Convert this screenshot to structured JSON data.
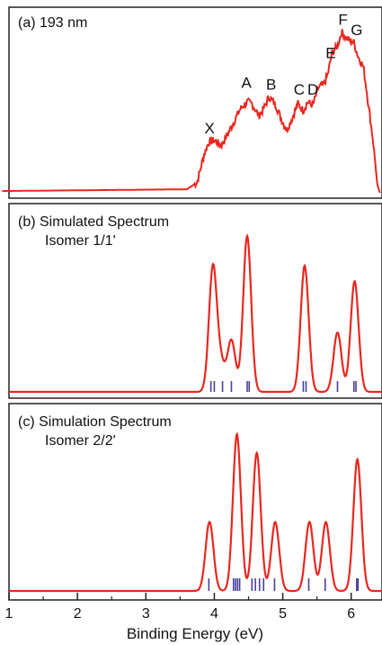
{
  "chart_data": [
    {
      "type": "line",
      "title": "(a) 193 nm",
      "color": "#e8271f",
      "x": [
        0.9,
        3.6,
        3.75,
        3.85,
        3.92,
        4.0,
        4.1,
        4.2,
        4.28,
        4.38,
        4.48,
        4.55,
        4.65,
        4.72,
        4.8,
        4.9,
        4.98,
        5.06,
        5.14,
        5.22,
        5.3,
        5.36,
        5.44,
        5.52,
        5.6,
        5.66,
        5.72,
        5.8,
        5.86,
        5.92,
        5.98,
        6.04,
        6.1,
        6.18,
        6.26,
        6.32,
        6.38,
        6.42
      ],
      "values": [
        0.01,
        0.02,
        0.06,
        0.22,
        0.29,
        0.3,
        0.27,
        0.34,
        0.4,
        0.48,
        0.52,
        0.51,
        0.44,
        0.48,
        0.55,
        0.5,
        0.42,
        0.36,
        0.43,
        0.51,
        0.47,
        0.52,
        0.5,
        0.6,
        0.62,
        0.68,
        0.8,
        0.84,
        0.92,
        0.89,
        0.87,
        0.86,
        0.78,
        0.72,
        0.48,
        0.3,
        0.05,
        0.0
      ],
      "ylim": [
        0,
        1
      ],
      "annotations": [
        {
          "text": "X",
          "x": 3.93,
          "y": 0.3
        },
        {
          "text": "A",
          "x": 4.47,
          "y": 0.56
        },
        {
          "text": "B",
          "x": 4.83,
          "y": 0.55
        },
        {
          "text": "C",
          "x": 5.24,
          "y": 0.52
        },
        {
          "text": "D",
          "x": 5.44,
          "y": 0.52
        },
        {
          "text": "E",
          "x": 5.7,
          "y": 0.73
        },
        {
          "text": "F",
          "x": 5.88,
          "y": 0.92
        },
        {
          "text": "G",
          "x": 6.08,
          "y": 0.86
        }
      ]
    },
    {
      "type": "line",
      "title": "(b) Simulated Spectrum",
      "subtitle": "Isomer 1/1'",
      "color": "#e8271f",
      "stick_color": "#4a3f9a",
      "sigma": 0.058,
      "peaks": [
        {
          "x": 3.98,
          "y": 0.8
        },
        {
          "x": 4.1,
          "y": 0.16
        },
        {
          "x": 4.25,
          "y": 0.33
        },
        {
          "x": 4.48,
          "y": 1.0
        },
        {
          "x": 5.32,
          "y": 0.81
        },
        {
          "x": 5.8,
          "y": 0.38
        },
        {
          "x": 6.05,
          "y": 0.71
        }
      ],
      "sticks": [
        3.95,
        4.0,
        4.12,
        4.25,
        4.48,
        4.51,
        5.3,
        5.34,
        5.8,
        6.04,
        6.07
      ],
      "ylim": [
        0,
        1
      ]
    },
    {
      "type": "line",
      "title": "(c) Simulation Spectrum",
      "subtitle": "Isomer 2/2'",
      "color": "#e8271f",
      "stick_color": "#4a3f9a",
      "sigma": 0.058,
      "peaks": [
        {
          "x": 3.93,
          "y": 0.44
        },
        {
          "x": 4.33,
          "y": 1.0
        },
        {
          "x": 4.62,
          "y": 0.88
        },
        {
          "x": 4.89,
          "y": 0.44
        },
        {
          "x": 5.39,
          "y": 0.44
        },
        {
          "x": 5.63,
          "y": 0.44
        },
        {
          "x": 6.09,
          "y": 0.84
        }
      ],
      "sticks": [
        3.92,
        4.28,
        4.31,
        4.34,
        4.37,
        4.55,
        4.6,
        4.66,
        4.72,
        4.88,
        5.38,
        5.62,
        6.08,
        6.1
      ],
      "ylim": [
        0,
        1
      ]
    }
  ],
  "axis": {
    "xlabel": "Binding Energy (eV)",
    "xlim": [
      1,
      6.45
    ],
    "xticks": [
      "1",
      "2",
      "3",
      "4",
      "5",
      "6"
    ]
  }
}
